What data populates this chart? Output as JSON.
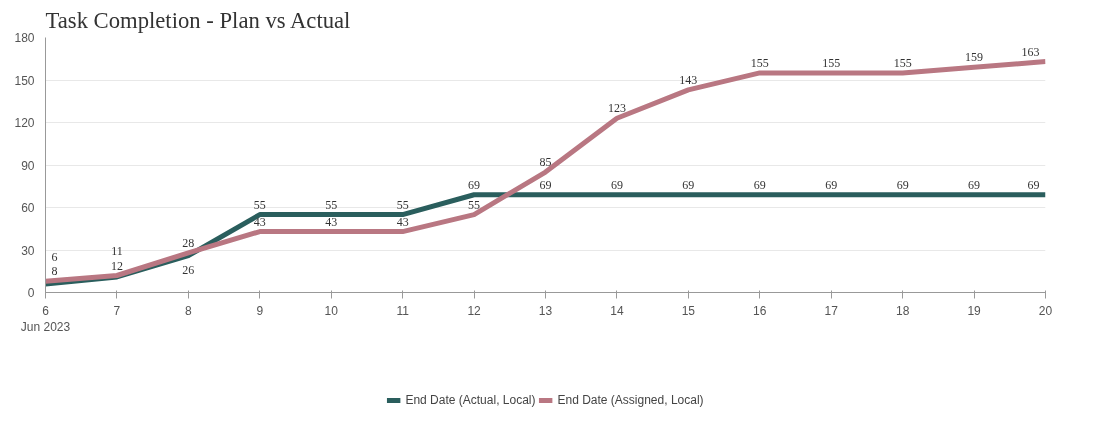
{
  "chart_data": {
    "type": "line",
    "title": "Task Completion - Plan vs Actual",
    "x": [
      "2023-06-06",
      "2023-06-07",
      "2023-06-08",
      "2023-06-09",
      "2023-06-10",
      "2023-06-11",
      "2023-06-12",
      "2023-06-13",
      "2023-06-14",
      "2023-06-15",
      "2023-06-16",
      "2023-06-17",
      "2023-06-18",
      "2023-06-19",
      "2023-06-20"
    ],
    "series": [
      {
        "name": "End Date (Actual, Local)",
        "color": "#2a5e5d",
        "values": [
          6,
          11,
          26,
          55,
          55,
          55,
          69,
          69,
          69,
          69,
          69,
          69,
          69,
          69,
          69
        ]
      },
      {
        "name": "End Date (Assigned, Local)",
        "color": "#b97782",
        "values": [
          8,
          12,
          28,
          43,
          43,
          43,
          55,
          85,
          123,
          143,
          155,
          155,
          155,
          159,
          163
        ]
      }
    ],
    "xlim": [
      "2023-06-06",
      "2023-06-20"
    ],
    "xticks": [
      {
        "value": "2023-06-06",
        "label": "6\nJun 2023"
      },
      {
        "value": "2023-06-07",
        "label": "7"
      },
      {
        "value": "2023-06-08",
        "label": "8"
      },
      {
        "value": "2023-06-09",
        "label": "9"
      },
      {
        "value": "2023-06-10",
        "label": "10"
      },
      {
        "value": "2023-06-11",
        "label": "11"
      },
      {
        "value": "2023-06-12",
        "label": "12"
      },
      {
        "value": "2023-06-13",
        "label": "13"
      },
      {
        "value": "2023-06-14",
        "label": "14"
      },
      {
        "value": "2023-06-15",
        "label": "15"
      },
      {
        "value": "2023-06-16",
        "label": "16"
      },
      {
        "value": "2023-06-17",
        "label": "17"
      },
      {
        "value": "2023-06-18",
        "label": "18"
      },
      {
        "value": "2023-06-19",
        "label": "19"
      },
      {
        "value": "2023-06-20",
        "label": "20"
      }
    ],
    "ylim": [
      0,
      180
    ],
    "yticks": [
      0,
      30,
      60,
      90,
      120,
      150,
      180
    ],
    "grid": "y",
    "legend": "bottom",
    "data_labels": true,
    "marker": "none",
    "line_style": "solid"
  }
}
